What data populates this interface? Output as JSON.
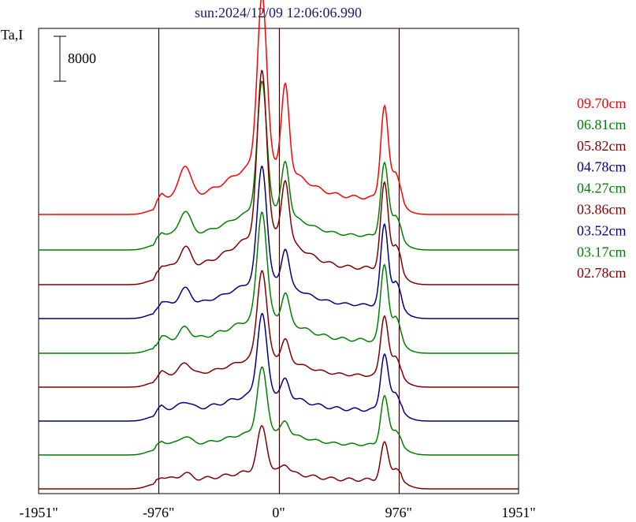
{
  "chart_data": {
    "type": "line",
    "title": "sun:2024/12/09 12:06:06.990",
    "title_color": "#1a1a6e",
    "ylabel": "Ta,I",
    "scale_bar_label": "8000",
    "x_ticks": [
      "-1951\"",
      "-976\"",
      "0\"",
      "976\"",
      "1951\""
    ],
    "x_tick_values": [
      -1951,
      -976,
      0,
      976,
      1951
    ],
    "xlim": [
      -1951,
      1951
    ],
    "vertical_lines": [
      -976,
      0,
      976
    ],
    "grid": false,
    "legend_position": "right",
    "series": [
      {
        "name": "09.70cm",
        "color": "#ff0000",
        "baseline": 272,
        "peaks": {
          "left_limb": 40,
          "center": 210,
          "right_bump": 105,
          "right_limb": 115
        }
      },
      {
        "name": "06.81cm",
        "color": "#008000",
        "baseline": 317,
        "peaks": {
          "left_limb": 30,
          "center": 160,
          "right_bump": 65,
          "right_limb": 90
        }
      },
      {
        "name": "05.82cm",
        "color": "#800000",
        "baseline": 361,
        "peaks": {
          "left_limb": 25,
          "center": 205,
          "right_bump": 75,
          "right_limb": 105
        }
      },
      {
        "name": "04.78cm",
        "color": "#000080",
        "baseline": 404,
        "peaks": {
          "left_limb": 20,
          "center": 145,
          "right_bump": 45,
          "right_limb": 100
        }
      },
      {
        "name": "04.27cm",
        "color": "#008000",
        "baseline": 448,
        "peaks": {
          "left_limb": 15,
          "center": 135,
          "right_bump": 35,
          "right_limb": 95
        }
      },
      {
        "name": "03.86cm",
        "color": "#800000",
        "baseline": 491,
        "peaks": {
          "left_limb": 15,
          "center": 110,
          "right_bump": 25,
          "right_limb": 75
        }
      },
      {
        "name": "03.52cm",
        "color": "#000080",
        "baseline": 534,
        "peaks": {
          "left_limb": 10,
          "center": 100,
          "right_bump": 20,
          "right_limb": 70
        }
      },
      {
        "name": "03.17cm",
        "color": "#008000",
        "baseline": 577,
        "peaks": {
          "left_limb": 10,
          "center": 80,
          "right_bump": 15,
          "right_limb": 60
        }
      },
      {
        "name": "02.78cm",
        "color": "#800000",
        "baseline": 620,
        "peaks": {
          "left_limb": 8,
          "center": 55,
          "right_bump": 10,
          "right_limb": 45
        }
      }
    ]
  }
}
